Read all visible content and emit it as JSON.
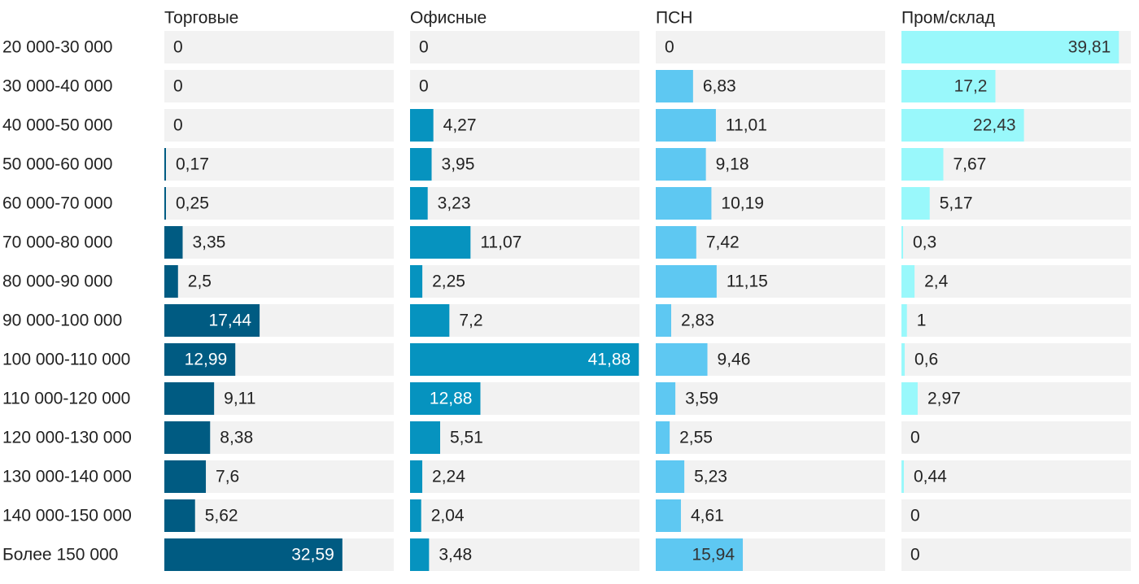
{
  "chart_data": {
    "type": "bar",
    "orientation": "horizontal",
    "layout": "small-multiples",
    "categories": [
      "20 000-30 000",
      "30 000-40 000",
      "40 000-50 000",
      "50 000-60 000",
      "60 000-70 000",
      "70 000-80 000",
      "80 000-90 000",
      "90 000-100 000",
      "100 000-110 000",
      "110 000-120 000",
      "120 000-130 000",
      "130 000-140 000",
      "140 000-150 000",
      "Более 150 000"
    ],
    "xlim": [
      0,
      42
    ],
    "series": [
      {
        "name": "Торговые",
        "color": "#005b82",
        "label_color_inside": "#ffffff",
        "values": [
          0,
          0,
          0,
          0.17,
          0.25,
          3.35,
          2.5,
          17.44,
          12.99,
          9.11,
          8.38,
          7.6,
          5.62,
          32.59
        ],
        "labels": [
          "0",
          "0",
          "0",
          "0,17",
          "0,25",
          "3,35",
          "2,5",
          "17,44",
          "12,99",
          "9,11",
          "8,38",
          "7,6",
          "5,62",
          "32,59"
        ]
      },
      {
        "name": "Офисные",
        "color": "#0693bf",
        "label_color_inside": "#ffffff",
        "values": [
          0,
          0,
          4.27,
          3.95,
          3.23,
          11.07,
          2.25,
          7.2,
          41.88,
          12.88,
          5.51,
          2.24,
          2.04,
          3.48
        ],
        "labels": [
          "0",
          "0",
          "4,27",
          "3,95",
          "3,23",
          "11,07",
          "2,25",
          "7,2",
          "41,88",
          "12,88",
          "5,51",
          "2,24",
          "2,04",
          "3,48"
        ]
      },
      {
        "name": "ПСН",
        "color": "#5ec8f2",
        "label_color_inside": "#333333",
        "values": [
          0,
          6.83,
          11.01,
          9.18,
          10.19,
          7.42,
          11.15,
          2.83,
          9.46,
          3.59,
          2.55,
          5.23,
          4.61,
          15.94
        ],
        "labels": [
          "0",
          "6,83",
          "11,01",
          "9,18",
          "10,19",
          "7,42",
          "11,15",
          "2,83",
          "9,46",
          "3,59",
          "2,55",
          "5,23",
          "4,61",
          "15,94"
        ]
      },
      {
        "name": "Пром/склад",
        "color": "#99f8fb",
        "label_color_inside": "#333333",
        "values": [
          39.81,
          17.2,
          22.43,
          7.67,
          5.17,
          0.3,
          2.4,
          1,
          0.6,
          2.97,
          0,
          0.44,
          0,
          0
        ],
        "labels": [
          "39,81",
          "17,2",
          "22,43",
          "7,67",
          "5,17",
          "0,3",
          "2,4",
          "1",
          "0,6",
          "2,97",
          "0",
          "0,44",
          "0",
          "0"
        ]
      }
    ]
  }
}
